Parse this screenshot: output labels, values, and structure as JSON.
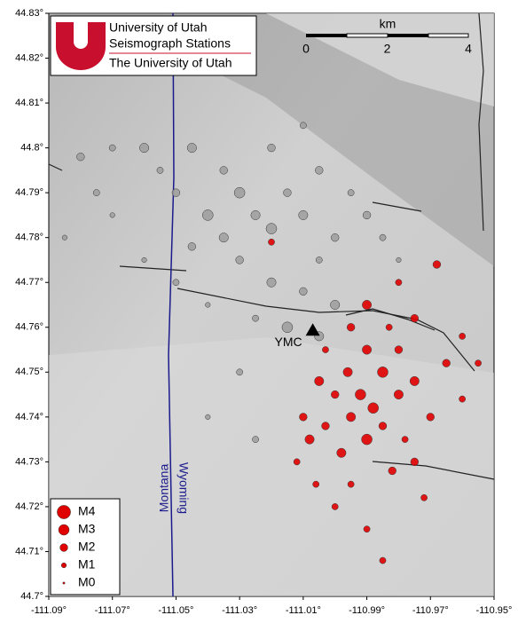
{
  "chart_data": {
    "type": "scatter",
    "xlim": [
      -111.09,
      -110.95
    ],
    "ylim": [
      44.7,
      44.83
    ],
    "xticks": [
      {
        "value": -111.09,
        "label": "-111.09°"
      },
      {
        "value": -111.07,
        "label": "-111.07°"
      },
      {
        "value": -111.05,
        "label": "-111.05°"
      },
      {
        "value": -111.03,
        "label": "-111.03°"
      },
      {
        "value": -111.01,
        "label": "-111.01°"
      },
      {
        "value": -110.99,
        "label": "-110.99°"
      },
      {
        "value": -110.97,
        "label": "-110.97°"
      },
      {
        "value": -110.95,
        "label": "-110.95°"
      }
    ],
    "yticks": [
      {
        "value": 44.7,
        "label": "44.7°"
      },
      {
        "value": 44.71,
        "label": "44.71°"
      },
      {
        "value": 44.72,
        "label": "44.72°"
      },
      {
        "value": 44.73,
        "label": "44.73°"
      },
      {
        "value": 44.74,
        "label": "44.74°"
      },
      {
        "value": 44.75,
        "label": "44.75°"
      },
      {
        "value": 44.76,
        "label": "44.76°"
      },
      {
        "value": 44.77,
        "label": "44.77°"
      },
      {
        "value": 44.78,
        "label": "44.78°"
      },
      {
        "value": 44.79,
        "label": "44.79°"
      },
      {
        "value": 44.8,
        "label": "44.8°"
      },
      {
        "value": 44.81,
        "label": "44.81°"
      },
      {
        "value": 44.82,
        "label": "44.82°"
      },
      {
        "value": 44.83,
        "label": "44.83°"
      }
    ],
    "series": [
      {
        "color": "#a0a0a0",
        "x": [
          -111.08,
          -111.075,
          -111.07,
          -111.06,
          -111.055,
          -111.05,
          -111.045,
          -111.04,
          -111.035,
          -111.03,
          -111.025,
          -111.02,
          -111.015,
          -111.01,
          -111.005,
          -111.0,
          -110.995,
          -110.99,
          -111.03,
          -111.02,
          -111.01,
          -111.0,
          -111.005,
          -111.035,
          -111.045,
          -111.06,
          -111.07,
          -111.015,
          -111.005,
          -111.025,
          -111.04,
          -111.02,
          -111.01,
          -110.985,
          -110.98,
          -111.03,
          -111.04,
          -111.025,
          -111.05,
          -111.085
        ],
        "y": [
          44.798,
          44.79,
          44.785,
          44.8,
          44.795,
          44.79,
          44.8,
          44.785,
          44.795,
          44.79,
          44.785,
          44.782,
          44.79,
          44.785,
          44.795,
          44.78,
          44.79,
          44.785,
          44.775,
          44.77,
          44.768,
          44.765,
          44.775,
          44.78,
          44.778,
          44.775,
          44.8,
          44.76,
          44.758,
          44.762,
          44.765,
          44.8,
          44.805,
          44.78,
          44.775,
          44.75,
          44.74,
          44.735,
          44.77,
          44.78
        ],
        "size": [
          2,
          1.5,
          1,
          2.5,
          1.5,
          2,
          2.5,
          3,
          2,
          3,
          2.5,
          3,
          2,
          2.5,
          2,
          2,
          1.5,
          2,
          2,
          2.5,
          2,
          2.5,
          1.5,
          2.5,
          2,
          1,
          1.5,
          3,
          2.5,
          1.5,
          1,
          2,
          1.5,
          1.5,
          1,
          1.5,
          1,
          1.5,
          1.5,
          1
        ]
      },
      {
        "color": "#e00000",
        "x": [
          -110.995,
          -110.99,
          -110.985,
          -110.98,
          -110.988,
          -110.995,
          -111.0,
          -111.005,
          -110.99,
          -110.998,
          -111.003,
          -110.985,
          -110.975,
          -110.97,
          -110.978,
          -110.982,
          -110.995,
          -111.0,
          -110.99,
          -110.985,
          -110.975,
          -110.965,
          -110.96,
          -110.99,
          -110.975,
          -110.98,
          -110.968,
          -111.01,
          -111.008,
          -111.012,
          -111.006,
          -110.98,
          -110.983,
          -111.02,
          -110.996,
          -110.992,
          -110.972,
          -110.96,
          -110.955,
          -111.003
        ],
        "y": [
          44.76,
          44.755,
          44.75,
          44.745,
          44.742,
          44.74,
          44.745,
          44.748,
          44.735,
          44.732,
          44.738,
          44.738,
          44.748,
          44.74,
          44.735,
          44.728,
          44.725,
          44.72,
          44.715,
          44.708,
          44.73,
          44.752,
          44.758,
          44.765,
          44.762,
          44.77,
          44.774,
          44.74,
          44.735,
          44.73,
          44.725,
          44.755,
          44.76,
          44.779,
          44.75,
          44.745,
          44.722,
          44.744,
          44.752,
          44.755
        ],
        "size": [
          2,
          2.5,
          3,
          2.5,
          3,
          2.5,
          2,
          2.5,
          3,
          2.5,
          2,
          2,
          2.5,
          2,
          1.5,
          2,
          1.5,
          1.5,
          1.5,
          1.5,
          2,
          2,
          1.5,
          2.5,
          2,
          1.5,
          2,
          2,
          2.5,
          1.5,
          1.5,
          2,
          1.5,
          1.5,
          2.5,
          3,
          1.5,
          1.5,
          1.5,
          1.5
        ]
      }
    ],
    "legend": [
      {
        "label": "M4",
        "value": 4
      },
      {
        "label": "M3",
        "value": 3
      },
      {
        "label": "M2",
        "value": 2
      },
      {
        "label": "M1",
        "value": 1
      },
      {
        "label": "M0",
        "value": 0
      }
    ],
    "station": {
      "label": "YMC",
      "x": -111.007,
      "y": 44.7593
    },
    "state_labels": [
      "Montana",
      "Wyoming"
    ],
    "logo": [
      "University of Utah",
      "Seismograph  Stations",
      "The University of Utah"
    ],
    "scale_bar": {
      "unit": "km",
      "ticks": [
        0,
        2,
        4
      ]
    }
  }
}
